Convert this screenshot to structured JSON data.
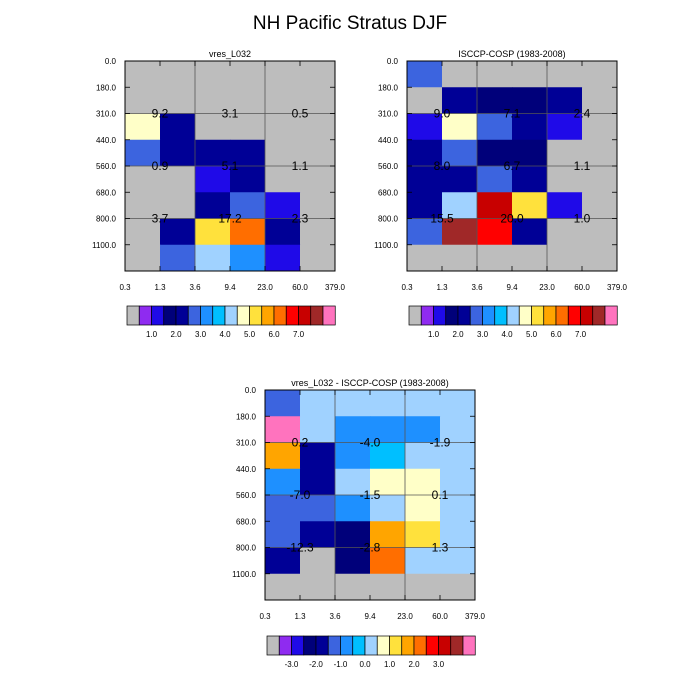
{
  "title": "NH Pacific Stratus DJF",
  "chart_data": [
    {
      "type": "heatmap",
      "title": "vres_L032",
      "x_ticks": [
        "0.3",
        "1.3",
        "3.6",
        "9.4",
        "23.0",
        "60.0",
        "379.0"
      ],
      "y_ticks": [
        "0.0",
        "180.0",
        "310.0",
        "440.0",
        "560.0",
        "680.0",
        "800.0",
        "1100.0"
      ],
      "cells": [
        [
          -1,
          -1,
          -1,
          -1,
          -1,
          -1
        ],
        [
          -1,
          -1,
          -1,
          -1,
          -1,
          -1
        ],
        [
          8,
          3,
          -1,
          -1,
          -1,
          -1
        ],
        [
          4,
          3,
          3,
          3,
          -1,
          -1
        ],
        [
          -1,
          -1,
          1,
          3,
          -1,
          -1
        ],
        [
          -1,
          -1,
          3,
          4,
          1,
          -1
        ],
        [
          -1,
          3,
          9,
          11,
          3,
          -1
        ],
        [
          -1,
          4,
          7,
          5,
          1,
          -1
        ]
      ],
      "labels": [
        {
          "text": "9.2",
          "col": 0,
          "row": 1
        },
        {
          "text": "3.1",
          "col": 2,
          "row": 1
        },
        {
          "text": "0.5",
          "col": 4,
          "row": 1
        },
        {
          "text": "0.9",
          "col": 0,
          "row": 3
        },
        {
          "text": "5.1",
          "col": 2,
          "row": 3
        },
        {
          "text": "1.1",
          "col": 4,
          "row": 3
        },
        {
          "text": "3.7",
          "col": 0,
          "row": 5
        },
        {
          "text": "17.2",
          "col": 2,
          "row": 5
        },
        {
          "text": "2.3",
          "col": 4,
          "row": 5
        }
      ],
      "colorbar": {
        "ticks": [
          "1.0",
          "2.0",
          "3.0",
          "4.0",
          "5.0",
          "6.0",
          "7.0"
        ]
      }
    },
    {
      "type": "heatmap",
      "title": "ISCCP-COSP (1983-2008)",
      "x_ticks": [
        "0.3",
        "1.3",
        "3.6",
        "9.4",
        "23.0",
        "60.0",
        "379.0"
      ],
      "y_ticks": [
        "0.0",
        "180.0",
        "310.0",
        "440.0",
        "560.0",
        "680.0",
        "800.0",
        "1100.0"
      ],
      "cells": [
        [
          4,
          -1,
          -1,
          -1,
          -1,
          -1
        ],
        [
          -1,
          3,
          2,
          2,
          3,
          -1
        ],
        [
          1,
          8,
          4,
          3,
          1,
          -1
        ],
        [
          3,
          4,
          2,
          2,
          -1,
          -1
        ],
        [
          3,
          3,
          4,
          3,
          -1,
          -1
        ],
        [
          3,
          7,
          13,
          9,
          1,
          -1
        ],
        [
          4,
          14,
          12,
          3,
          -1,
          -1
        ],
        [
          -1,
          -1,
          -1,
          -1,
          -1,
          -1
        ]
      ],
      "labels": [
        {
          "text": "9.0",
          "col": 0,
          "row": 1
        },
        {
          "text": "7.1",
          "col": 2,
          "row": 1
        },
        {
          "text": "2.4",
          "col": 4,
          "row": 1
        },
        {
          "text": "8.0",
          "col": 0,
          "row": 3
        },
        {
          "text": "6.7",
          "col": 2,
          "row": 3
        },
        {
          "text": "1.1",
          "col": 4,
          "row": 3
        },
        {
          "text": "15.5",
          "col": 0,
          "row": 5
        },
        {
          "text": "20.0",
          "col": 2,
          "row": 5
        },
        {
          "text": "1.0",
          "col": 4,
          "row": 5
        }
      ],
      "colorbar": {
        "ticks": [
          "1.0",
          "2.0",
          "3.0",
          "4.0",
          "5.0",
          "6.0",
          "7.0"
        ]
      }
    },
    {
      "type": "heatmap",
      "title": "vres_L032 - ISCCP-COSP (1983-2008)",
      "x_ticks": [
        "0.3",
        "1.3",
        "3.6",
        "9.4",
        "23.0",
        "60.0",
        "379.0"
      ],
      "y_ticks": [
        "0.0",
        "180.0",
        "310.0",
        "440.0",
        "560.0",
        "680.0",
        "800.0",
        "1100.0"
      ],
      "cells": [
        [
          4,
          7,
          7,
          7,
          7,
          7
        ],
        [
          15,
          7,
          5,
          5,
          5,
          7
        ],
        [
          10,
          3,
          5,
          6,
          7,
          7
        ],
        [
          5,
          3,
          7,
          8,
          8,
          7
        ],
        [
          4,
          4,
          5,
          7,
          8,
          7
        ],
        [
          4,
          3,
          2,
          10,
          9,
          7
        ],
        [
          3,
          -1,
          2,
          11,
          7,
          7
        ],
        [
          -1,
          -1,
          -1,
          -1,
          -1,
          -1
        ]
      ],
      "labels": [
        {
          "text": "0.2",
          "col": 0,
          "row": 1
        },
        {
          "text": "-4.0",
          "col": 2,
          "row": 1
        },
        {
          "text": "-1.9",
          "col": 4,
          "row": 1
        },
        {
          "text": "-7.0",
          "col": 0,
          "row": 3
        },
        {
          "text": "-1.5",
          "col": 2,
          "row": 3
        },
        {
          "text": "0.1",
          "col": 4,
          "row": 3
        },
        {
          "text": "-12.3",
          "col": 0,
          "row": 5
        },
        {
          "text": "-2.8",
          "col": 2,
          "row": 5
        },
        {
          "text": "1.3",
          "col": 4,
          "row": 5
        }
      ],
      "colorbar": {
        "ticks": [
          "-3.0",
          "-2.0",
          "-1.0",
          "0.0",
          "1.0",
          "2.0",
          "3.0"
        ]
      }
    }
  ],
  "palette": [
    "#8f2bf0",
    "#1f0ae8",
    "#00007a",
    "#000096",
    "#3c64df",
    "#1e90ff",
    "#00bfff",
    "#a0d2ff",
    "#ffffc8",
    "#ffe13c",
    "#ffa500",
    "#ff6e00",
    "#ff0000",
    "#c80000",
    "#a02828",
    "#ff73be"
  ],
  "empty_color": "#bdbdbd"
}
